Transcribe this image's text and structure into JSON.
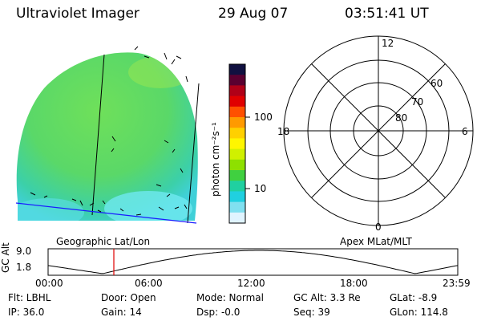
{
  "header": {
    "title": "Ultraviolet Imager",
    "date": "29 Aug 07",
    "time": "03:51:41 UT"
  },
  "colorbar": {
    "unit_label": "photon cm⁻²s⁻¹",
    "ticks": [
      "100",
      "10"
    ],
    "colors": [
      "#101040",
      "#5a0030",
      "#b00018",
      "#e00000",
      "#ff5000",
      "#ff9a00",
      "#ffd000",
      "#fff600",
      "#d0f000",
      "#8ee000",
      "#40d040",
      "#20d0a0",
      "#20d0e0",
      "#80e0f0",
      "#e0f4ff"
    ]
  },
  "left_panel": {
    "caption": "Geographic Lat/Lon"
  },
  "right_panel": {
    "caption": "Apex MLat/MLT",
    "mlt_labels": {
      "top": "12",
      "left": "18",
      "right": "6",
      "bottom": "0"
    },
    "mlat_labels": [
      "60",
      "70",
      "80"
    ]
  },
  "altitude_plot": {
    "ylabel": "GC Alt",
    "ymax": "9.0",
    "ymin": "1.8",
    "x_ticks": [
      "00:00",
      "06:00",
      "12:00",
      "18:00",
      "23:59"
    ],
    "marker_time": "03:51",
    "marker_color": "#e00000"
  },
  "info": {
    "flt": "Flt: LBHL",
    "ip": "IP: 36.0",
    "door": "Door: Open",
    "gain": "Gain: 14",
    "mode": "Mode: Normal",
    "dsp": "Dsp:   -0.0",
    "gc_alt": "GC Alt: 3.3 Re",
    "seq": "Seq: 39",
    "glat": "GLat:   -8.9",
    "glon": "GLon: 114.8"
  }
}
